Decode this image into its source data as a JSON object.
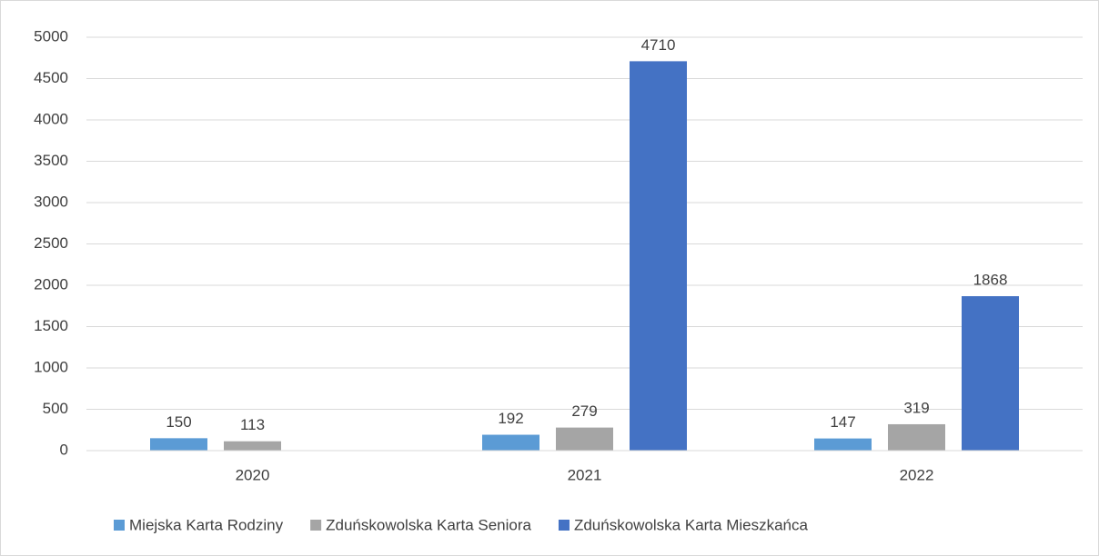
{
  "chart_data": {
    "type": "bar",
    "categories": [
      "2020",
      "2021",
      "2022"
    ],
    "series": [
      {
        "name": "Miejska Karta Rodziny",
        "color": "#5b9bd5",
        "values": [
          150,
          192,
          147
        ]
      },
      {
        "name": "Zduńskowolska Karta Seniora",
        "color": "#a5a5a5",
        "values": [
          113,
          279,
          319
        ]
      },
      {
        "name": "Zduńskowolska Karta Mieszkańca",
        "color": "#4472c4",
        "values": [
          null,
          4710,
          1868
        ]
      }
    ],
    "ylim": [
      0,
      5000
    ],
    "yticks": [
      0,
      500,
      1000,
      1500,
      2000,
      2500,
      3000,
      3500,
      4000,
      4500,
      5000
    ],
    "grid": true,
    "legend": "bottom",
    "data_labels": true
  }
}
